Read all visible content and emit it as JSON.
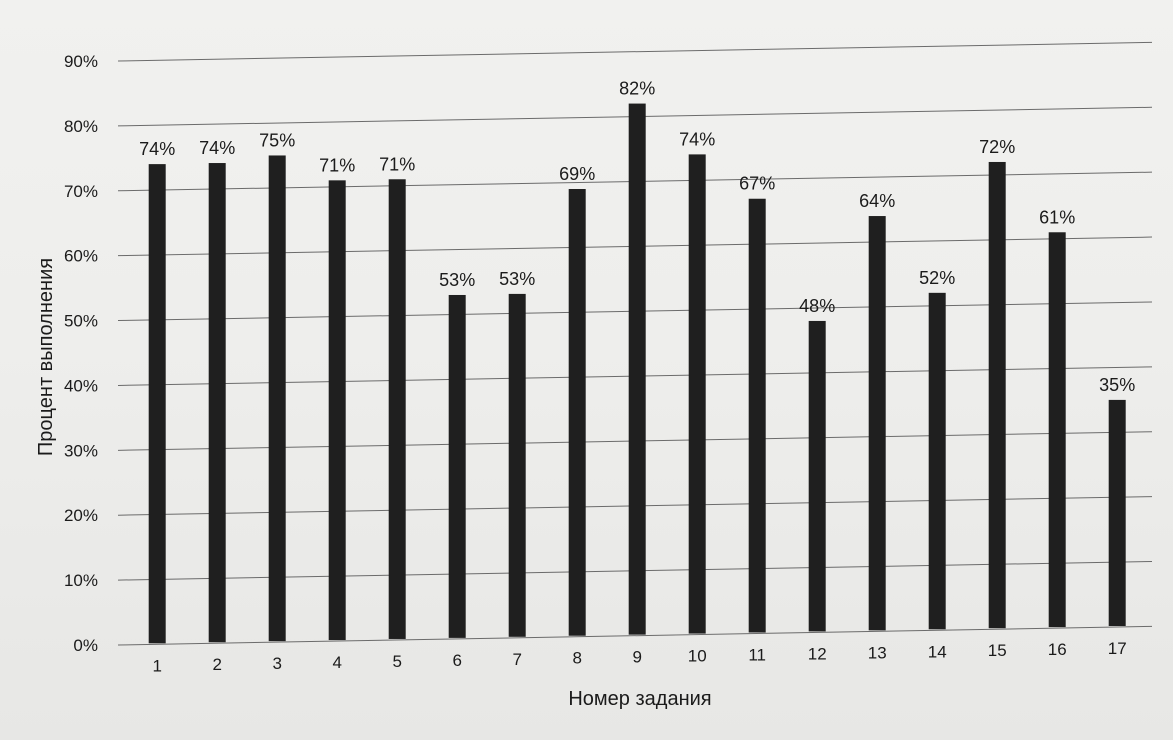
{
  "chart_data": {
    "type": "bar",
    "title": "",
    "xlabel": "Номер задания",
    "ylabel": "Процент выполнения",
    "categories": [
      "1",
      "2",
      "3",
      "4",
      "5",
      "6",
      "7",
      "8",
      "9",
      "10",
      "11",
      "12",
      "13",
      "14",
      "15",
      "16",
      "17"
    ],
    "values": [
      74,
      74,
      75,
      71,
      71,
      53,
      53,
      69,
      82,
      74,
      67,
      48,
      64,
      52,
      72,
      61,
      35
    ],
    "value_labels": [
      "74%",
      "74%",
      "75%",
      "71%",
      "71%",
      "53%",
      "53%",
      "69%",
      "82%",
      "74%",
      "67%",
      "48%",
      "64%",
      "52%",
      "72%",
      "61%",
      "35%"
    ],
    "yticks": [
      "0%",
      "10%",
      "20%",
      "30%",
      "40%",
      "50%",
      "60%",
      "70%",
      "80%",
      "90%"
    ],
    "ylim": [
      0,
      90
    ],
    "grid": true,
    "legend": "none",
    "colors": {
      "bar": "#1f1f1f",
      "grid": "#6b6b6b",
      "text": "#1b1b1b"
    }
  }
}
